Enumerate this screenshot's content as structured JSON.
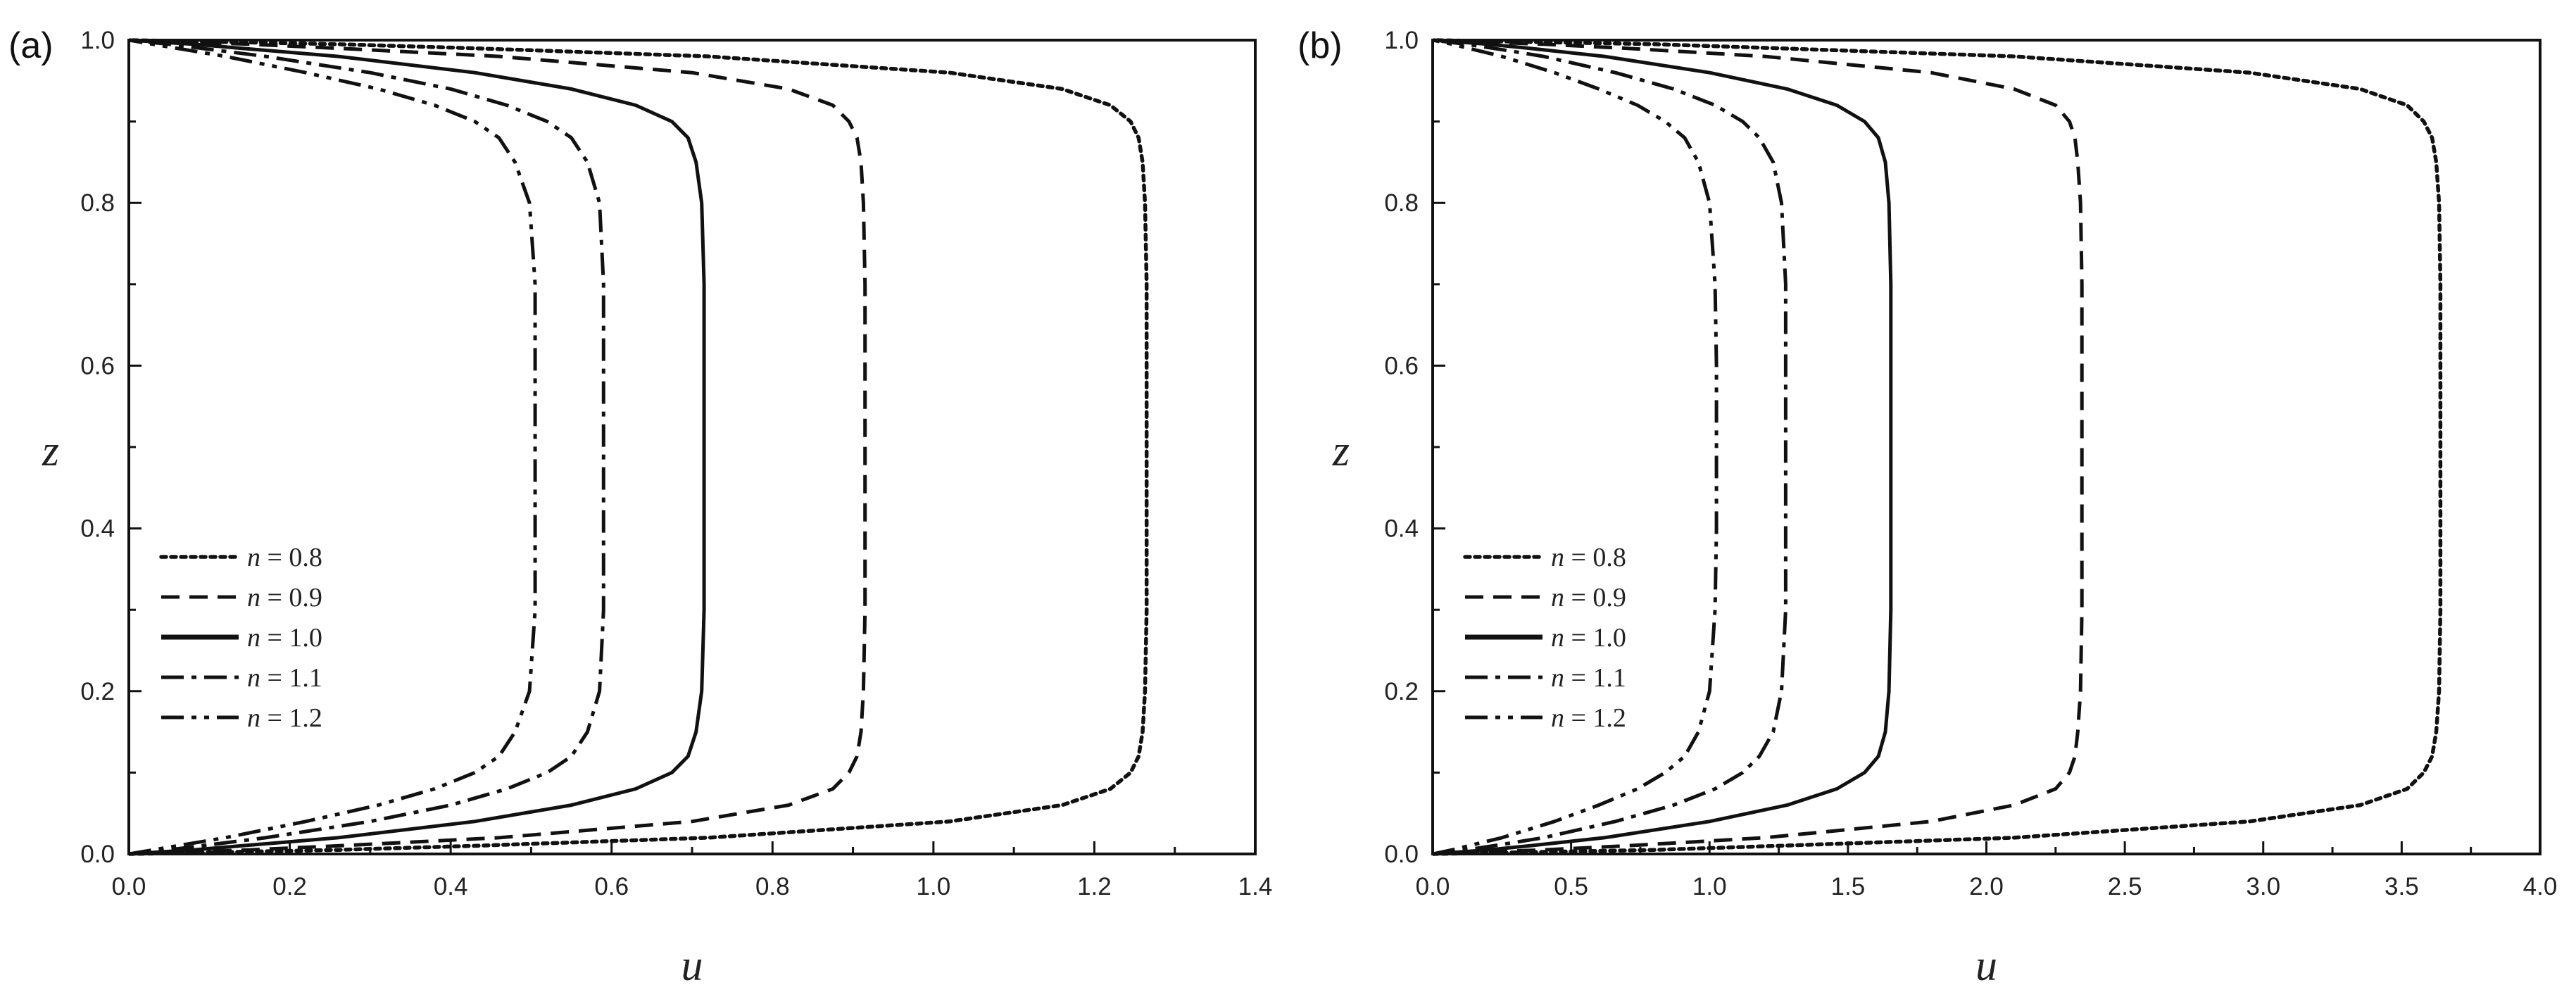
{
  "chart_data": [
    {
      "panel_label": "(a)",
      "type": "line",
      "xlabel": "u",
      "ylabel": "z",
      "xlim": [
        0,
        1.4
      ],
      "ylim": [
        0,
        1.0
      ],
      "xticks": [
        "0.0",
        "0.2",
        "0.4",
        "0.6",
        "0.8",
        "1.0",
        "1.2",
        "1.4"
      ],
      "yticks": [
        "0.0",
        "0.2",
        "0.4",
        "0.6",
        "0.8",
        "1.0"
      ],
      "grid": false,
      "legend_position": "lower-left",
      "z": [
        0,
        0.005,
        0.01,
        0.02,
        0.04,
        0.06,
        0.08,
        0.1,
        0.12,
        0.15,
        0.2,
        0.3,
        0.4,
        0.5,
        0.6,
        0.7,
        0.8,
        0.85,
        0.88,
        0.9,
        0.92,
        0.94,
        0.96,
        0.98,
        0.99,
        0.995,
        1.0
      ],
      "series": [
        {
          "name": "n = 0.8",
          "var": "n",
          "value": "0.8",
          "dash": "dot",
          "u": [
            0,
            0.26,
            0.43,
            0.72,
            1.02,
            1.16,
            1.22,
            1.245,
            1.255,
            1.26,
            1.263,
            1.265,
            1.265,
            1.265,
            1.265,
            1.265,
            1.263,
            1.26,
            1.255,
            1.245,
            1.22,
            1.16,
            1.02,
            0.72,
            0.43,
            0.26,
            0
          ]
        },
        {
          "name": "n = 0.9",
          "var": "n",
          "value": "0.9",
          "dash": "dash",
          "u": [
            0,
            0.15,
            0.26,
            0.46,
            0.7,
            0.82,
            0.875,
            0.895,
            0.905,
            0.91,
            0.913,
            0.915,
            0.915,
            0.915,
            0.915,
            0.915,
            0.913,
            0.91,
            0.905,
            0.895,
            0.875,
            0.82,
            0.7,
            0.46,
            0.26,
            0.15,
            0
          ]
        },
        {
          "name": "n = 1.0",
          "var": "n",
          "value": "1.0",
          "dash": "solid",
          "u": [
            0,
            0.08,
            0.14,
            0.26,
            0.43,
            0.55,
            0.63,
            0.675,
            0.695,
            0.705,
            0.712,
            0.715,
            0.715,
            0.715,
            0.715,
            0.715,
            0.712,
            0.705,
            0.695,
            0.675,
            0.63,
            0.55,
            0.43,
            0.26,
            0.14,
            0.08,
            0
          ]
        },
        {
          "name": "n = 1.1",
          "var": "n",
          "value": "1.1",
          "dash": "dashdot",
          "u": [
            0,
            0.05,
            0.09,
            0.17,
            0.3,
            0.4,
            0.47,
            0.52,
            0.55,
            0.57,
            0.585,
            0.59,
            0.59,
            0.59,
            0.59,
            0.59,
            0.585,
            0.57,
            0.55,
            0.52,
            0.47,
            0.4,
            0.3,
            0.17,
            0.09,
            0.05,
            0
          ]
        },
        {
          "name": "n = 1.2",
          "var": "n",
          "value": "1.2",
          "dash": "dashdotdot",
          "u": [
            0,
            0.03,
            0.06,
            0.12,
            0.22,
            0.31,
            0.38,
            0.43,
            0.46,
            0.48,
            0.498,
            0.505,
            0.505,
            0.505,
            0.505,
            0.505,
            0.498,
            0.48,
            0.46,
            0.43,
            0.38,
            0.31,
            0.22,
            0.12,
            0.06,
            0.03,
            0
          ]
        }
      ]
    },
    {
      "panel_label": "(b)",
      "type": "line",
      "xlabel": "u",
      "ylabel": "z",
      "xlim": [
        0,
        4.0
      ],
      "ylim": [
        0,
        1.0
      ],
      "xticks": [
        "0.0",
        "0.5",
        "1.0",
        "1.5",
        "2.0",
        "2.5",
        "3.0",
        "3.5",
        "4.0"
      ],
      "yticks": [
        "0.0",
        "0.2",
        "0.4",
        "0.6",
        "0.8",
        "1.0"
      ],
      "grid": false,
      "legend_position": "lower-left",
      "z": [
        0,
        0.005,
        0.01,
        0.02,
        0.04,
        0.06,
        0.08,
        0.1,
        0.12,
        0.15,
        0.2,
        0.3,
        0.4,
        0.5,
        0.6,
        0.7,
        0.8,
        0.85,
        0.88,
        0.9,
        0.92,
        0.94,
        0.96,
        0.98,
        0.99,
        0.995,
        1.0
      ],
      "series": [
        {
          "name": "n = 0.8",
          "var": "n",
          "value": "0.8",
          "dash": "dot",
          "u": [
            0,
            0.8,
            1.25,
            2.1,
            2.95,
            3.35,
            3.52,
            3.58,
            3.61,
            3.625,
            3.635,
            3.64,
            3.64,
            3.64,
            3.64,
            3.64,
            3.635,
            3.625,
            3.61,
            3.58,
            3.52,
            3.35,
            2.95,
            2.1,
            1.25,
            0.8,
            0
          ]
        },
        {
          "name": "n = 0.9",
          "var": "n",
          "value": "0.9",
          "dash": "dash",
          "u": [
            0,
            0.4,
            0.7,
            1.2,
            1.8,
            2.1,
            2.25,
            2.3,
            2.32,
            2.33,
            2.34,
            2.345,
            2.345,
            2.345,
            2.345,
            2.345,
            2.34,
            2.33,
            2.32,
            2.3,
            2.25,
            2.1,
            1.8,
            1.2,
            0.7,
            0.4,
            0
          ]
        },
        {
          "name": "n = 1.0",
          "var": "n",
          "value": "1.0",
          "dash": "solid",
          "u": [
            0,
            0.2,
            0.35,
            0.62,
            1.0,
            1.28,
            1.46,
            1.56,
            1.61,
            1.635,
            1.648,
            1.655,
            1.655,
            1.655,
            1.655,
            1.655,
            1.648,
            1.635,
            1.61,
            1.56,
            1.46,
            1.28,
            1.0,
            0.62,
            0.35,
            0.2,
            0
          ]
        },
        {
          "name": "n = 1.1",
          "var": "n",
          "value": "1.1",
          "dash": "dashdot",
          "u": [
            0,
            0.12,
            0.22,
            0.4,
            0.66,
            0.87,
            1.02,
            1.12,
            1.18,
            1.23,
            1.26,
            1.275,
            1.275,
            1.275,
            1.275,
            1.275,
            1.26,
            1.23,
            1.18,
            1.12,
            1.02,
            0.87,
            0.66,
            0.4,
            0.22,
            0.12,
            0
          ]
        },
        {
          "name": "n = 1.2",
          "var": "n",
          "value": "1.2",
          "dash": "dashdotdot",
          "u": [
            0,
            0.07,
            0.13,
            0.25,
            0.44,
            0.6,
            0.74,
            0.84,
            0.91,
            0.96,
            1.0,
            1.02,
            1.025,
            1.025,
            1.025,
            1.02,
            1.0,
            0.96,
            0.91,
            0.84,
            0.74,
            0.6,
            0.44,
            0.25,
            0.13,
            0.07,
            0
          ]
        }
      ]
    }
  ]
}
